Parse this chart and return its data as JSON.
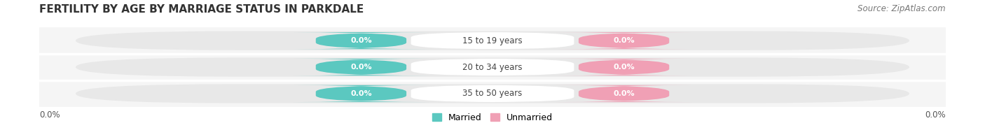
{
  "title": "FERTILITY BY AGE BY MARRIAGE STATUS IN PARKDALE",
  "source": "Source: ZipAtlas.com",
  "categories": [
    "15 to 19 years",
    "20 to 34 years",
    "35 to 50 years"
  ],
  "married_values": [
    0.0,
    0.0,
    0.0
  ],
  "unmarried_values": [
    0.0,
    0.0,
    0.0
  ],
  "married_color": "#5bc8c0",
  "unmarried_color": "#f0a0b5",
  "capsule_bg_color": "#e8e8e8",
  "row_separator_color": "#ffffff",
  "bg_color": "#f5f5f5",
  "title_color": "#333333",
  "source_color": "#777777",
  "label_text_color": "#444444",
  "value_text_color": "#ffffff",
  "left_axis_label": "0.0%",
  "right_axis_label": "0.0%",
  "title_fontsize": 11,
  "source_fontsize": 8.5,
  "bar_label_fontsize": 8.5,
  "value_fontsize": 8,
  "legend_fontsize": 9
}
